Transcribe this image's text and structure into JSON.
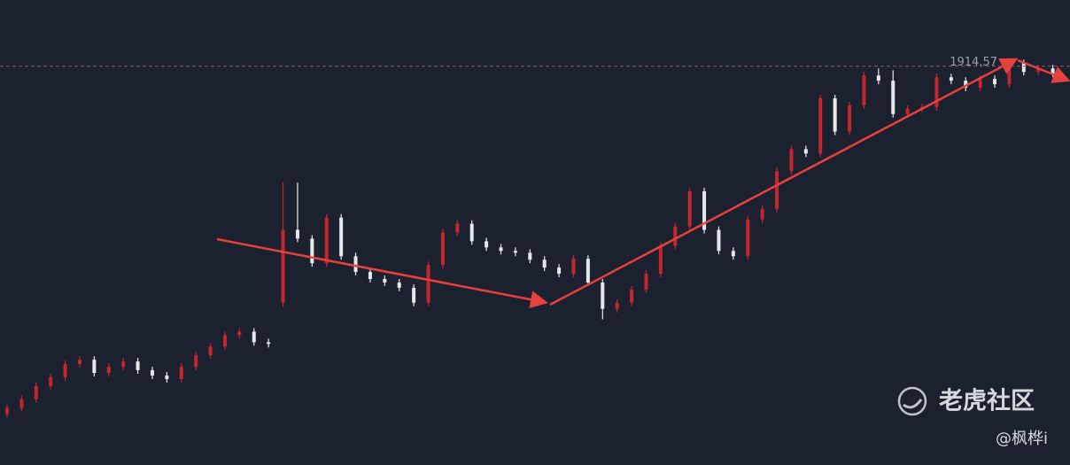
{
  "chart_data": {
    "type": "candlestick",
    "ylim": [
      1460,
      1990
    ],
    "up_color": "#c4262e",
    "down_color": "#e6e8ec",
    "price_line": 1914.57,
    "watermark": "老虎社区",
    "author": "@枫桦i",
    "open": [
      1518,
      1525,
      1535,
      1550,
      1560,
      1575,
      1580,
      1565,
      1572,
      1578,
      1568,
      1562,
      1558,
      1572,
      1585,
      1595,
      1608,
      1612,
      1600,
      1645,
      1728,
      1718,
      1690,
      1742,
      1698,
      1680,
      1672,
      1668,
      1662,
      1645,
      1688,
      1725,
      1735,
      1715,
      1708,
      1704,
      1702,
      1694,
      1685,
      1678,
      1695,
      1668,
      1638,
      1645,
      1660,
      1678,
      1710,
      1732,
      1772,
      1728,
      1704,
      1698,
      1740,
      1752,
      1795,
      1820,
      1815,
      1878,
      1840,
      1870,
      1904,
      1898,
      1860,
      1866,
      1868,
      1902,
      1898,
      1890,
      1900,
      1894,
      1918,
      1908,
      1912
    ],
    "high": [
      1529,
      1539,
      1554,
      1564,
      1579,
      1584,
      1584,
      1576,
      1582,
      1582,
      1572,
      1566,
      1576,
      1589,
      1599,
      1612,
      1616,
      1616,
      1604,
      1782,
      1782,
      1722,
      1746,
      1746,
      1702,
      1684,
      1676,
      1672,
      1666,
      1692,
      1729,
      1739,
      1739,
      1719,
      1712,
      1708,
      1706,
      1698,
      1689,
      1699,
      1699,
      1672,
      1649,
      1664,
      1682,
      1714,
      1736,
      1776,
      1776,
      1732,
      1708,
      1744,
      1756,
      1799,
      1824,
      1824,
      1882,
      1882,
      1874,
      1908,
      1912,
      1910,
      1870,
      1872,
      1906,
      1906,
      1902,
      1904,
      1904,
      1922,
      1922,
      1916,
      1916
    ],
    "low": [
      1514,
      1521,
      1531,
      1546,
      1556,
      1571,
      1561,
      1561,
      1568,
      1564,
      1558,
      1554,
      1554,
      1568,
      1581,
      1591,
      1604,
      1596,
      1594,
      1640,
      1714,
      1686,
      1686,
      1694,
      1676,
      1668,
      1664,
      1658,
      1641,
      1641,
      1684,
      1721,
      1711,
      1704,
      1700,
      1698,
      1690,
      1681,
      1674,
      1674,
      1664,
      1626,
      1634,
      1641,
      1656,
      1674,
      1706,
      1728,
      1724,
      1700,
      1694,
      1694,
      1736,
      1748,
      1791,
      1811,
      1811,
      1836,
      1836,
      1866,
      1894,
      1856,
      1856,
      1862,
      1864,
      1894,
      1886,
      1886,
      1890,
      1890,
      1904,
      1904,
      1902
    ],
    "close": [
      1525,
      1535,
      1550,
      1560,
      1575,
      1580,
      1565,
      1572,
      1578,
      1568,
      1562,
      1558,
      1572,
      1585,
      1595,
      1608,
      1612,
      1600,
      1598,
      1728,
      1718,
      1690,
      1742,
      1698,
      1680,
      1672,
      1668,
      1662,
      1645,
      1688,
      1725,
      1735,
      1715,
      1708,
      1704,
      1702,
      1694,
      1685,
      1678,
      1695,
      1668,
      1638,
      1645,
      1660,
      1678,
      1710,
      1732,
      1772,
      1728,
      1704,
      1698,
      1740,
      1752,
      1795,
      1820,
      1815,
      1878,
      1840,
      1870,
      1904,
      1898,
      1860,
      1866,
      1868,
      1902,
      1898,
      1890,
      1900,
      1894,
      1918,
      1908,
      1912,
      1906
    ]
  }
}
